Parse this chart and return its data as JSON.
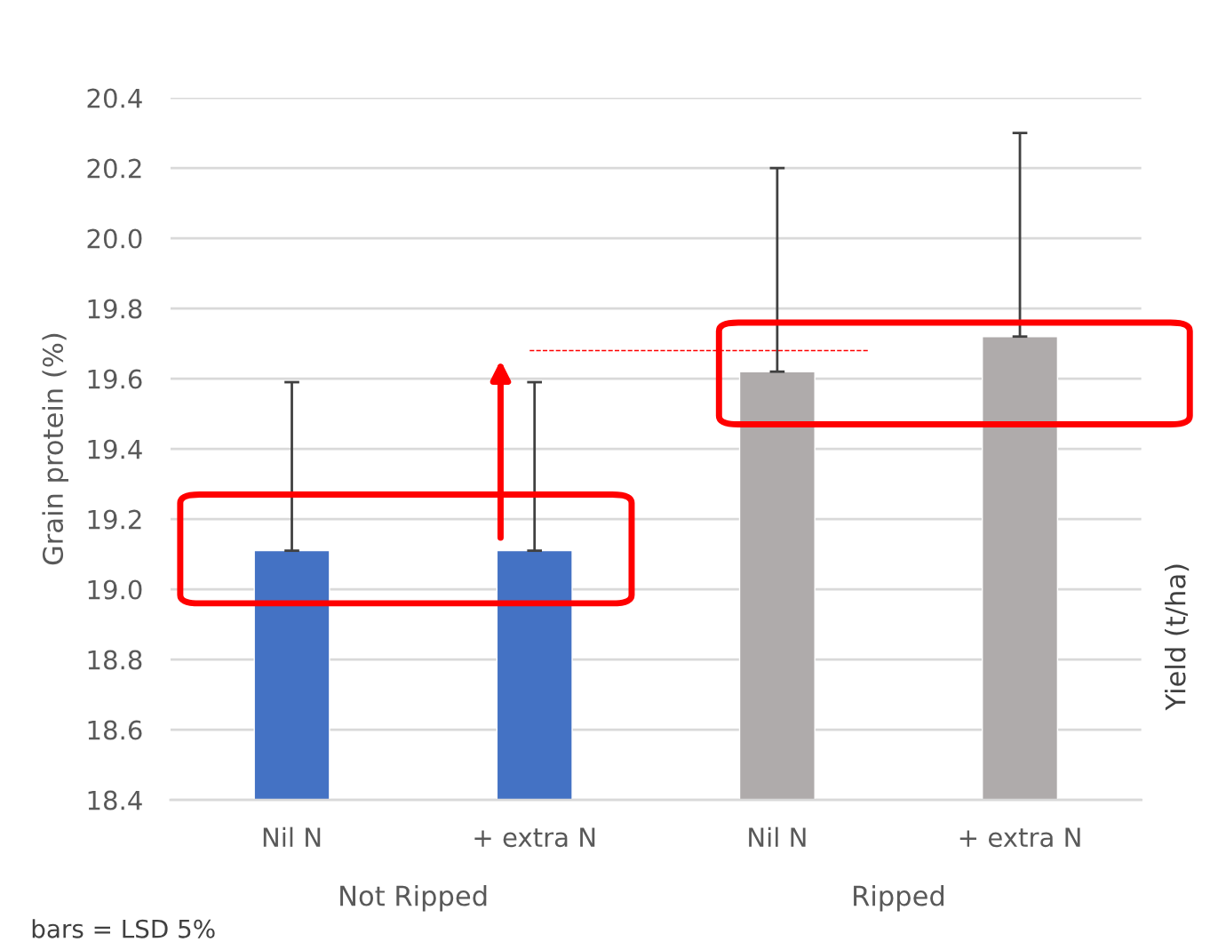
{
  "chart_data": {
    "type": "bar",
    "ylabel": "Grain protein (%)",
    "categories": [
      "Nil N",
      "+ extra N",
      "Nil N",
      "+ extra N"
    ],
    "values": [
      19.11,
      19.11,
      19.62,
      19.72
    ],
    "colors": [
      "#4472c4",
      "#4472c4",
      "#afabab",
      "#afabab"
    ],
    "errors": [
      [
        19.11,
        19.59
      ],
      [
        19.11,
        19.59
      ],
      [
        19.62,
        20.2
      ],
      [
        19.72,
        20.3
      ]
    ],
    "ylim": [
      18.4,
      20.4
    ],
    "yticks": [
      18.4,
      18.6,
      18.8,
      {
        "value": 19.0,
        "label": "19.0"
      },
      19.2,
      19.4,
      19.6,
      19.8,
      {
        "value": 20.0,
        "label": "20.0"
      },
      20.2,
      20.4
    ],
    "grid": "y",
    "ref_lines": [
      {
        "axis": "y",
        "value": 19.68,
        "color": "#ff0000",
        "line_style": "dashed"
      }
    ],
    "annotations": [
      "Not Ripped",
      "Ripped",
      "bars = LSD 5%",
      "Yield (t/ha)"
    ]
  }
}
